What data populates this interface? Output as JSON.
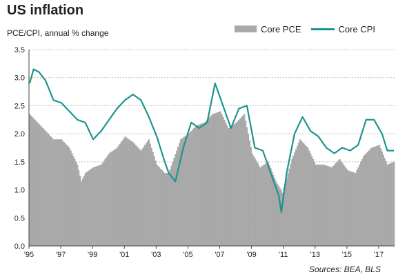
{
  "title": "US inflation",
  "source_note": "Sources:  BEA, BLS",
  "colors": {
    "bars": "#a9a9a9",
    "line": "#1b948f",
    "grid": "#bdbdbd",
    "axis": "#444444"
  },
  "chart_data": {
    "type": "bar+line",
    "title": "US inflation",
    "ylabel": "PCE/CPI, annual  % change",
    "ylim": [
      0,
      3.5
    ],
    "yticks": [
      "0.0",
      "0.5",
      "1.0",
      "1.5",
      "2.0",
      "2.5",
      "3.0",
      "3.5"
    ],
    "xticks": [
      "'95",
      "'97",
      "'99",
      "'01",
      "'03",
      "'05",
      "'07",
      "'09",
      "'11",
      "'13",
      "'15",
      "'17"
    ],
    "x_range": [
      "1995-01",
      "2017-12"
    ],
    "grid": "horizontal dotted",
    "legend_position": "top-right",
    "series": [
      {
        "name": "Core PCE",
        "type": "bar",
        "x": [
          "1995-01",
          "1995-07",
          "1996-01",
          "1996-07",
          "1997-01",
          "1997-07",
          "1998-01",
          "1998-04",
          "1998-07",
          "1999-01",
          "1999-07",
          "2000-01",
          "2000-07",
          "2001-01",
          "2001-07",
          "2002-01",
          "2002-07",
          "2003-01",
          "2003-07",
          "2003-10",
          "2004-01",
          "2004-07",
          "2005-01",
          "2005-07",
          "2006-01",
          "2006-07",
          "2007-01",
          "2007-07",
          "2008-01",
          "2008-07",
          "2009-01",
          "2009-07",
          "2010-01",
          "2010-07",
          "2010-12",
          "2011-07",
          "2012-01",
          "2012-07",
          "2013-01",
          "2013-07",
          "2014-01",
          "2014-07",
          "2015-01",
          "2015-07",
          "2016-01",
          "2016-07",
          "2017-01",
          "2017-07",
          "2017-12"
        ],
        "values": [
          2.35,
          2.2,
          2.05,
          1.9,
          1.9,
          1.75,
          1.45,
          1.15,
          1.3,
          1.4,
          1.45,
          1.65,
          1.75,
          1.95,
          1.85,
          1.7,
          1.9,
          1.45,
          1.3,
          1.3,
          1.5,
          1.9,
          2.0,
          2.15,
          2.2,
          2.35,
          2.4,
          2.1,
          2.2,
          2.35,
          1.65,
          1.4,
          1.5,
          1.15,
          0.95,
          1.55,
          1.9,
          1.75,
          1.45,
          1.45,
          1.4,
          1.55,
          1.35,
          1.3,
          1.6,
          1.75,
          1.8,
          1.45,
          1.5
        ]
      },
      {
        "name": "Core CPI",
        "type": "line",
        "x": [
          "1995-01",
          "1995-04",
          "1995-08",
          "1996-01",
          "1996-07",
          "1997-01",
          "1997-07",
          "1998-01",
          "1998-07",
          "1999-01",
          "1999-07",
          "2000-01",
          "2000-07",
          "2001-01",
          "2001-07",
          "2002-01",
          "2002-07",
          "2003-01",
          "2003-07",
          "2003-10",
          "2004-03",
          "2004-09",
          "2005-03",
          "2005-09",
          "2006-03",
          "2006-09",
          "2007-03",
          "2007-09",
          "2008-03",
          "2008-09",
          "2009-03",
          "2009-09",
          "2010-03",
          "2010-09",
          "2010-11",
          "2011-03",
          "2011-09",
          "2012-03",
          "2012-09",
          "2013-03",
          "2013-09",
          "2014-03",
          "2014-09",
          "2015-03",
          "2015-09",
          "2016-03",
          "2016-09",
          "2017-03",
          "2017-07",
          "2017-12"
        ],
        "values": [
          2.9,
          3.15,
          3.1,
          2.95,
          2.6,
          2.55,
          2.4,
          2.25,
          2.2,
          1.9,
          2.05,
          2.25,
          2.45,
          2.6,
          2.7,
          2.6,
          2.3,
          1.95,
          1.5,
          1.3,
          1.15,
          1.75,
          2.2,
          2.1,
          2.2,
          2.9,
          2.5,
          2.1,
          2.45,
          2.5,
          1.75,
          1.7,
          1.3,
          0.9,
          0.6,
          1.3,
          2.0,
          2.3,
          2.05,
          1.95,
          1.75,
          1.65,
          1.75,
          1.7,
          1.8,
          2.25,
          2.25,
          2.0,
          1.7,
          1.7
        ]
      }
    ]
  }
}
